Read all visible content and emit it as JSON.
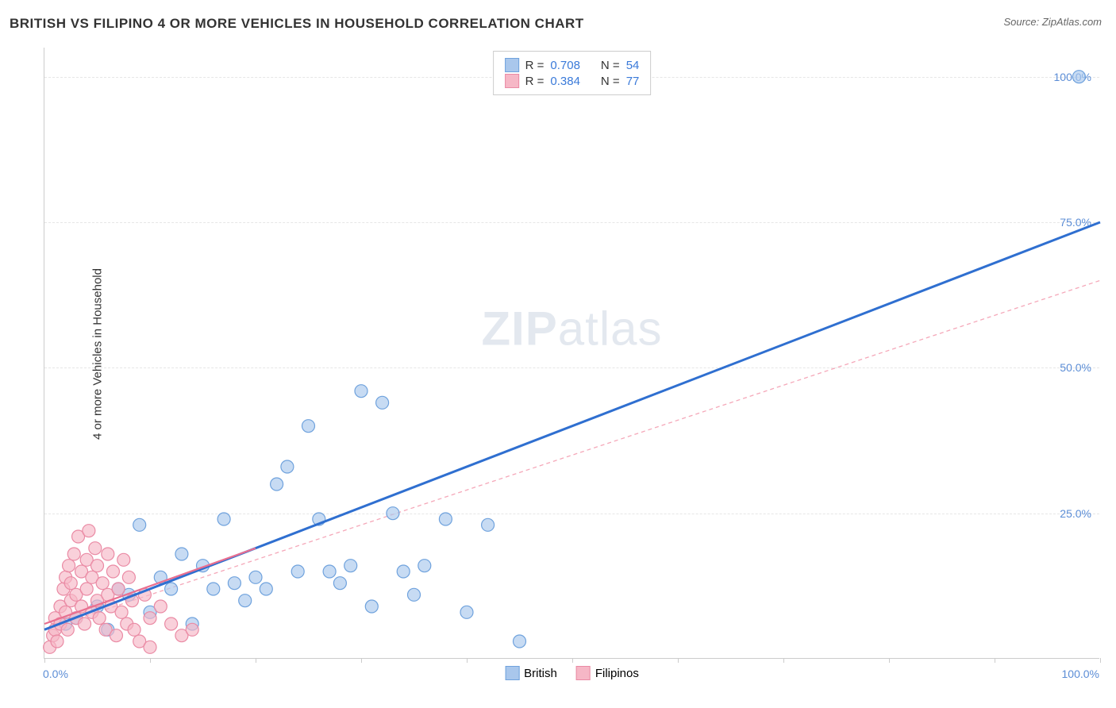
{
  "title": "BRITISH VS FILIPINO 4 OR MORE VEHICLES IN HOUSEHOLD CORRELATION CHART",
  "source": "Source: ZipAtlas.com",
  "y_axis_label": "4 or more Vehicles in Household",
  "watermark_zip": "ZIP",
  "watermark_atlas": "atlas",
  "chart": {
    "type": "scatter",
    "background_color": "#ffffff",
    "grid_color": "#e6e6e6",
    "axis_color": "#cccccc",
    "xlim": [
      0,
      100
    ],
    "ylim": [
      0,
      105
    ],
    "x_ticks": [
      0,
      10,
      20,
      30,
      40,
      50,
      60,
      70,
      80,
      90,
      100
    ],
    "y_gridlines": [
      25,
      50,
      75,
      100
    ],
    "x_tick_labels": {
      "0": "0.0%",
      "100": "100.0%"
    },
    "y_tick_labels": {
      "25": "25.0%",
      "50": "50.0%",
      "75": "75.0%",
      "100": "100.0%"
    },
    "tick_label_color": "#5b8dd6",
    "tick_label_fontsize": 14,
    "marker_radius": 8,
    "marker_stroke_width": 1.2,
    "series": [
      {
        "name": "British",
        "fill_color": "#a9c7ec",
        "stroke_color": "#6fa2dd",
        "fill_opacity": 0.65,
        "trend_line": {
          "x1": 0,
          "y1": 5,
          "x2": 100,
          "y2": 75,
          "color": "#2f6fd0",
          "width": 3,
          "dash": "none"
        },
        "trend_line_dashed": {
          "x1": 0,
          "y1": 5,
          "x2": 100,
          "y2": 65,
          "color": "#f5a8b9",
          "width": 1.3,
          "dash": "5,4"
        },
        "points": [
          [
            2,
            6
          ],
          [
            3,
            7
          ],
          [
            5,
            9
          ],
          [
            6,
            5
          ],
          [
            7,
            12
          ],
          [
            8,
            11
          ],
          [
            9,
            23
          ],
          [
            10,
            8
          ],
          [
            11,
            14
          ],
          [
            12,
            12
          ],
          [
            13,
            18
          ],
          [
            14,
            6
          ],
          [
            15,
            16
          ],
          [
            16,
            12
          ],
          [
            17,
            24
          ],
          [
            18,
            13
          ],
          [
            19,
            10
          ],
          [
            20,
            14
          ],
          [
            21,
            12
          ],
          [
            22,
            30
          ],
          [
            23,
            33
          ],
          [
            24,
            15
          ],
          [
            25,
            40
          ],
          [
            26,
            24
          ],
          [
            27,
            15
          ],
          [
            28,
            13
          ],
          [
            29,
            16
          ],
          [
            30,
            46
          ],
          [
            31,
            9
          ],
          [
            32,
            44
          ],
          [
            33,
            25
          ],
          [
            34,
            15
          ],
          [
            35,
            11
          ],
          [
            36,
            16
          ],
          [
            38,
            24
          ],
          [
            40,
            8
          ],
          [
            42,
            23
          ],
          [
            45,
            3
          ],
          [
            98,
            100
          ]
        ]
      },
      {
        "name": "Filipinos",
        "fill_color": "#f6b7c6",
        "stroke_color": "#ea8aa4",
        "fill_opacity": 0.65,
        "trend_line": {
          "x1": 0,
          "y1": 6,
          "x2": 20,
          "y2": 19,
          "color": "#e96f90",
          "width": 2.2,
          "dash": "none"
        },
        "points": [
          [
            0.5,
            2
          ],
          [
            0.8,
            4
          ],
          [
            1,
            5
          ],
          [
            1,
            7
          ],
          [
            1.2,
            3
          ],
          [
            1.5,
            9
          ],
          [
            1.5,
            6
          ],
          [
            1.8,
            12
          ],
          [
            2,
            14
          ],
          [
            2,
            8
          ],
          [
            2.2,
            5
          ],
          [
            2.3,
            16
          ],
          [
            2.5,
            10
          ],
          [
            2.5,
            13
          ],
          [
            2.8,
            18
          ],
          [
            3,
            7
          ],
          [
            3,
            11
          ],
          [
            3.2,
            21
          ],
          [
            3.5,
            9
          ],
          [
            3.5,
            15
          ],
          [
            3.8,
            6
          ],
          [
            4,
            17
          ],
          [
            4,
            12
          ],
          [
            4.2,
            22
          ],
          [
            4.5,
            8
          ],
          [
            4.5,
            14
          ],
          [
            4.8,
            19
          ],
          [
            5,
            10
          ],
          [
            5,
            16
          ],
          [
            5.2,
            7
          ],
          [
            5.5,
            13
          ],
          [
            5.8,
            5
          ],
          [
            6,
            11
          ],
          [
            6,
            18
          ],
          [
            6.3,
            9
          ],
          [
            6.5,
            15
          ],
          [
            6.8,
            4
          ],
          [
            7,
            12
          ],
          [
            7.3,
            8
          ],
          [
            7.5,
            17
          ],
          [
            7.8,
            6
          ],
          [
            8,
            14
          ],
          [
            8.3,
            10
          ],
          [
            8.5,
            5
          ],
          [
            9,
            3
          ],
          [
            9.5,
            11
          ],
          [
            10,
            7
          ],
          [
            10,
            2
          ],
          [
            11,
            9
          ],
          [
            12,
            6
          ],
          [
            13,
            4
          ],
          [
            14,
            5
          ]
        ]
      }
    ],
    "stats_box": {
      "border_color": "#cccccc",
      "background_color": "#ffffff",
      "fontsize": 15,
      "rows": [
        {
          "swatch_fill": "#a9c7ec",
          "swatch_stroke": "#6fa2dd",
          "r_label": "R =",
          "r_value": "0.708",
          "n_label": "N =",
          "n_value": "54"
        },
        {
          "swatch_fill": "#f6b7c6",
          "swatch_stroke": "#ea8aa4",
          "r_label": "R =",
          "r_value": "0.384",
          "n_label": "N =",
          "n_value": "77"
        }
      ]
    },
    "legend": {
      "items": [
        {
          "swatch_fill": "#a9c7ec",
          "swatch_stroke": "#6fa2dd",
          "label": "British"
        },
        {
          "swatch_fill": "#f6b7c6",
          "swatch_stroke": "#ea8aa4",
          "label": "Filipinos"
        }
      ]
    }
  }
}
